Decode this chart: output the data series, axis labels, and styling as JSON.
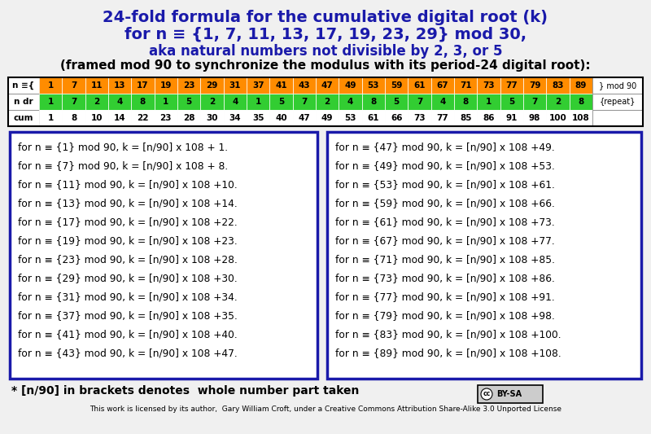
{
  "title_line1": "24-fold formula for the cumulative digital root (k)",
  "title_line2": "for n ≡ {1, 7, 11, 13, 17, 19, 23, 29} mod 30,",
  "title_line3": "aka natural numbers not divisible by 2, 3, or 5",
  "subtitle": "(framed mod 90 to synchronize the modulus with its period-24 digital root):",
  "n_values": [
    1,
    7,
    11,
    13,
    17,
    19,
    23,
    29,
    31,
    37,
    41,
    43,
    47,
    49,
    53,
    59,
    61,
    67,
    71,
    73,
    77,
    79,
    83,
    89
  ],
  "ndr_values": [
    1,
    7,
    2,
    4,
    8,
    1,
    5,
    2,
    4,
    1,
    5,
    7,
    2,
    4,
    8,
    5,
    7,
    4,
    8,
    1,
    5,
    7,
    2,
    8
  ],
  "cum_values": [
    1,
    8,
    10,
    14,
    22,
    23,
    28,
    30,
    34,
    35,
    40,
    47,
    49,
    53,
    61,
    66,
    73,
    77,
    85,
    86,
    91,
    98,
    100,
    108
  ],
  "n_bg_color": "#FF8C00",
  "ndr_bg_color": "#32CD32",
  "border_color": "#1a1aaa",
  "title_color": "#1a1aaa",
  "formula_lines_left": [
    "for n ≡ {1} mod 90, k = [n/90] x 108 + 1.",
    "for n ≡ {7} mod 90, k = [n/90] x 108 + 8.",
    "for n ≡ {11} mod 90, k = [n/90] x 108 +10.",
    "for n ≡ {13} mod 90, k = [n/90] x 108 +14.",
    "for n ≡ {17} mod 90, k = [n/90] x 108 +22.",
    "for n ≡ {19} mod 90, k = [n/90] x 108 +23.",
    "for n ≡ {23} mod 90, k = [n/90] x 108 +28.",
    "for n ≡ {29} mod 90, k = [n/90] x 108 +30.",
    "for n ≡ {31} mod 90, k = [n/90] x 108 +34.",
    "for n ≡ {37} mod 90, k = [n/90] x 108 +35.",
    "for n ≡ {41} mod 90, k = [n/90] x 108 +40.",
    "for n ≡ {43} mod 90, k = [n/90] x 108 +47."
  ],
  "formula_lines_right": [
    "for n ≡ {47} mod 90, k = [n/90] x 108 +49.",
    "for n ≡ {49} mod 90, k = [n/90] x 108 +53.",
    "for n ≡ {53} mod 90, k = [n/90] x 108 +61.",
    "for n ≡ {59} mod 90, k = [n/90] x 108 +66.",
    "for n ≡ {61} mod 90, k = [n/90] x 108 +73.",
    "for n ≡ {67} mod 90, k = [n/90] x 108 +77.",
    "for n ≡ {71} mod 90, k = [n/90] x 108 +85.",
    "for n ≡ {73} mod 90, k = [n/90] x 108 +86.",
    "for n ≡ {77} mod 90, k = [n/90] x 108 +91.",
    "for n ≡ {79} mod 90, k = [n/90] x 108 +98.",
    "for n ≡ {83} mod 90, k = [n/90] x 108 +100.",
    "for n ≡ {89} mod 90, k = [n/90] x 108 +108."
  ],
  "footnote": "* [n/90] in brackets denotes  whole number part taken",
  "license_text": "This work is licensed by its author,  Gary William Croft, under a Creative Commons Attribution Share-Alike 3.0 Unported License",
  "mod90_label": "} mod 90",
  "repeat_label": "{repeat}",
  "bg_color": "#f0f0f0"
}
